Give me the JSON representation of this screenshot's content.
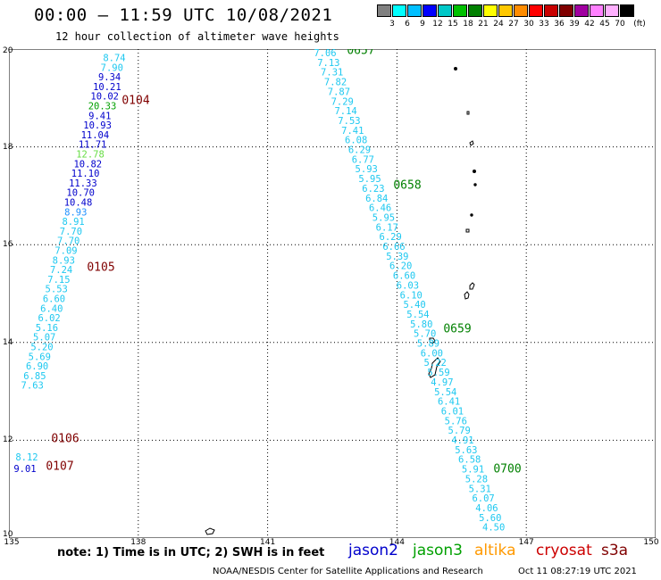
{
  "header": {
    "title": "00:00 – 11:59 UTC 10/08/2021",
    "subtitle": "12 hour collection of altimeter wave heights"
  },
  "colorbar": {
    "unit": "(ft)",
    "colors": [
      "#808080",
      "#00ffff",
      "#00bfff",
      "#0000ff",
      "#00c8c8",
      "#00c000",
      "#008000",
      "#ffff00",
      "#ffc800",
      "#ff8c00",
      "#ff0000",
      "#c80000",
      "#800000",
      "#a000a0",
      "#ff80ff",
      "#ffb0ff",
      "#000000"
    ],
    "labels": [
      "3",
      "6",
      "9",
      "12",
      "15",
      "18",
      "21",
      "24",
      "27",
      "30",
      "33",
      "36",
      "39",
      "42",
      "45",
      "70"
    ]
  },
  "axes": {
    "lon_ticks": [
      "135",
      "138",
      "141",
      "144",
      "147",
      "150"
    ],
    "lat_ticks": [
      "20",
      "18",
      "16",
      "14",
      "12",
      "10"
    ]
  },
  "passes": [
    {
      "color_default": "#1ec8f0",
      "values": [
        {
          "v": "8.74",
          "c": "#1ec8f0"
        },
        {
          "v": "7.90",
          "c": "#1ec8f0"
        },
        {
          "v": "9.34",
          "c": "#0000cc"
        },
        {
          "v": "10.21",
          "c": "#0000cc"
        },
        {
          "v": "10.02",
          "c": "#0000cc"
        },
        {
          "v": "20.33",
          "c": "#00a000"
        },
        {
          "v": "9.41",
          "c": "#0000cc"
        },
        {
          "v": "10.93",
          "c": "#0000cc"
        },
        {
          "v": "11.04",
          "c": "#0000cc"
        },
        {
          "v": "11.71",
          "c": "#0000cc"
        },
        {
          "v": "12.78",
          "c": "#66dd44"
        },
        {
          "v": "10.82",
          "c": "#0000cc"
        },
        {
          "v": "11.10",
          "c": "#0000cc"
        },
        {
          "v": "11.33",
          "c": "#0000cc"
        },
        {
          "v": "10.70",
          "c": "#0000cc"
        },
        {
          "v": "10.48",
          "c": "#0000cc"
        },
        {
          "v": "8.93",
          "c": "#1e90ff"
        },
        {
          "v": "8.91",
          "c": "#1ec8f0"
        },
        {
          "v": "7.70",
          "c": "#1ec8f0"
        },
        {
          "v": "7.70",
          "c": "#1ec8f0"
        },
        {
          "v": "7.09",
          "c": "#1ec8f0"
        },
        {
          "v": "8.93",
          "c": "#1ec8f0"
        },
        {
          "v": "7.24",
          "c": "#1ec8f0"
        },
        {
          "v": "7.15",
          "c": "#1ec8f0"
        },
        {
          "v": "5.53",
          "c": "#1ec8f0"
        },
        {
          "v": "6.60",
          "c": "#1ec8f0"
        },
        {
          "v": "6.40",
          "c": "#1ec8f0"
        },
        {
          "v": "6.02",
          "c": "#1ec8f0"
        },
        {
          "v": "5.16",
          "c": "#1ec8f0"
        },
        {
          "v": "5.07",
          "c": "#1ec8f0"
        },
        {
          "v": "5.20",
          "c": "#1ec8f0"
        },
        {
          "v": "5.69",
          "c": "#1ec8f0"
        },
        {
          "v": "6.90",
          "c": "#1ec8f0"
        },
        {
          "v": "6.85",
          "c": "#1ec8f0"
        },
        {
          "v": "7.63",
          "c": "#1ec8f0"
        }
      ]
    },
    {
      "values": [
        {
          "v": "8.12",
          "c": "#1ec8f0"
        },
        {
          "v": "9.01",
          "c": "#0000cc"
        }
      ]
    },
    {
      "values": [
        {
          "v": "7.06",
          "c": "#1ec8f0"
        },
        {
          "v": "7.13",
          "c": "#1ec8f0"
        },
        {
          "v": "7.31",
          "c": "#1ec8f0"
        },
        {
          "v": "7.82",
          "c": "#1ec8f0"
        },
        {
          "v": "7.87",
          "c": "#1ec8f0"
        },
        {
          "v": "7.29",
          "c": "#1ec8f0"
        },
        {
          "v": "7.14",
          "c": "#1ec8f0"
        },
        {
          "v": "7.53",
          "c": "#1ec8f0"
        },
        {
          "v": "7.41",
          "c": "#1ec8f0"
        },
        {
          "v": "6.08",
          "c": "#1ec8f0"
        },
        {
          "v": "6.29",
          "c": "#1ec8f0"
        },
        {
          "v": "6.77",
          "c": "#1ec8f0"
        },
        {
          "v": "5.93",
          "c": "#1ec8f0"
        },
        {
          "v": "5.95",
          "c": "#1ec8f0"
        },
        {
          "v": "6.23",
          "c": "#1ec8f0"
        },
        {
          "v": "6.84",
          "c": "#1ec8f0"
        },
        {
          "v": "6.46",
          "c": "#1ec8f0"
        },
        {
          "v": "5.95",
          "c": "#1ec8f0"
        },
        {
          "v": "6.17",
          "c": "#1ec8f0"
        },
        {
          "v": "6.29",
          "c": "#1ec8f0"
        },
        {
          "v": "6.66",
          "c": "#1ec8f0"
        },
        {
          "v": "5.39",
          "c": "#1ec8f0"
        },
        {
          "v": "6.20",
          "c": "#1ec8f0"
        },
        {
          "v": "6.60",
          "c": "#1ec8f0"
        },
        {
          "v": "6.03",
          "c": "#1ec8f0"
        },
        {
          "v": "6.10",
          "c": "#1ec8f0"
        },
        {
          "v": "5.40",
          "c": "#1ec8f0"
        },
        {
          "v": "5.54",
          "c": "#1ec8f0"
        },
        {
          "v": "5.80",
          "c": "#1ec8f0"
        },
        {
          "v": "5.70",
          "c": "#1ec8f0"
        },
        {
          "v": "5.89",
          "c": "#1ec8f0"
        },
        {
          "v": "6.00",
          "c": "#1ec8f0"
        },
        {
          "v": "5.22",
          "c": "#1ec8f0"
        },
        {
          "v": "5.59",
          "c": "#1ec8f0"
        },
        {
          "v": "4.97",
          "c": "#1ec8f0"
        },
        {
          "v": "5.54",
          "c": "#1ec8f0"
        },
        {
          "v": "6.41",
          "c": "#1ec8f0"
        },
        {
          "v": "6.01",
          "c": "#1ec8f0"
        },
        {
          "v": "5.76",
          "c": "#1ec8f0"
        },
        {
          "v": "5.79",
          "c": "#1ec8f0"
        },
        {
          "v": "4.91",
          "c": "#1ec8f0"
        },
        {
          "v": "5.63",
          "c": "#1ec8f0"
        },
        {
          "v": "6.58",
          "c": "#1ec8f0"
        },
        {
          "v": "5.91",
          "c": "#1ec8f0"
        },
        {
          "v": "5.28",
          "c": "#1ec8f0"
        },
        {
          "v": "5.31",
          "c": "#1ec8f0"
        },
        {
          "v": "6.07",
          "c": "#1ec8f0"
        },
        {
          "v": "4.06",
          "c": "#1ec8f0"
        },
        {
          "v": "5.60",
          "c": "#1ec8f0"
        },
        {
          "v": "4.50",
          "c": "#1ec8f0"
        }
      ]
    }
  ],
  "time_labels": [
    {
      "text": "0104",
      "color": "#800000"
    },
    {
      "text": "0105",
      "color": "#800000"
    },
    {
      "text": "0106",
      "color": "#800000"
    },
    {
      "text": "0107",
      "color": "#800000"
    },
    {
      "text": "0657",
      "color": "#008000"
    },
    {
      "text": "0658",
      "color": "#008000"
    },
    {
      "text": "0659",
      "color": "#008000"
    },
    {
      "text": "0700",
      "color": "#008000"
    }
  ],
  "note": "note: 1) Time is in UTC; 2) SWH is in feet",
  "legend": [
    {
      "name": "jason2",
      "color": "#0000cc"
    },
    {
      "name": "jason3",
      "color": "#00a000"
    },
    {
      "name": "altika",
      "color": "#ff9900"
    },
    {
      "name": "cryosat",
      "color": "#cc0000"
    },
    {
      "name": "s3a",
      "color": "#800000"
    }
  ],
  "footer": {
    "credit": "NOAA/NESDIS Center for Satellite Applications and Research",
    "timestamp": "Oct 11 08:27:19 UTC 2021"
  }
}
